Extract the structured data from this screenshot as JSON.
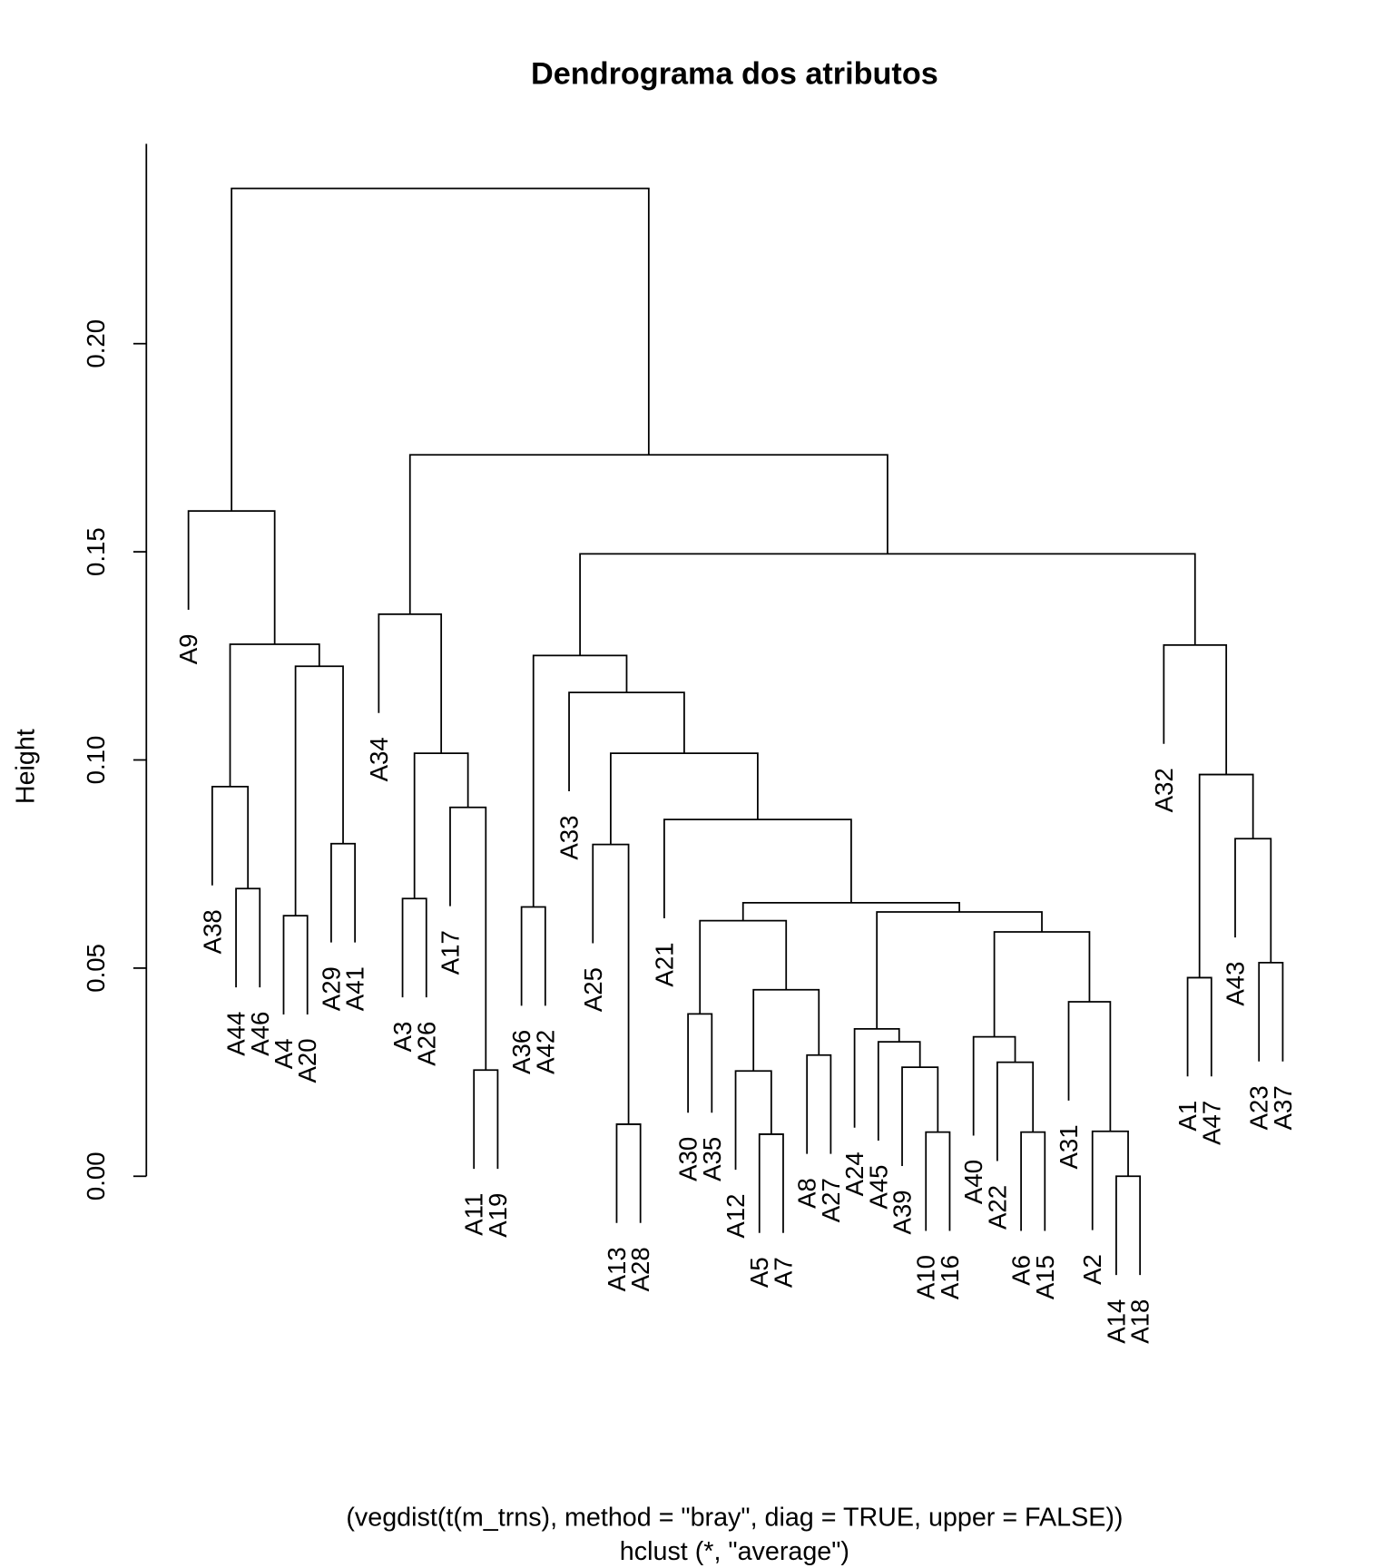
{
  "chart_data": {
    "type": "dendrogram",
    "title": "Dendrograma dos atributos",
    "ylabel": "Height",
    "xlabel": "(vegdist(t(m_trns), method = \"bray\", diag = TRUE, upper = FALSE))",
    "sub": "hclust (*, \"average\")",
    "ylim": [
      0,
      0.248
    ],
    "yticks": [
      0,
      0.05,
      0.1,
      0.15,
      0.2
    ],
    "ytick_labels": [
      "0.00",
      "0.05",
      "0.10",
      "0.15",
      "0.20"
    ],
    "hang": 0.1,
    "merges": [
      [
        "A14",
        "A18",
        0.0
      ],
      [
        "A11",
        "A19",
        0.0255
      ],
      [
        "A36",
        "A42",
        0.0647
      ],
      [
        "A13",
        "A28",
        0.0125
      ],
      [
        "A30",
        "A35",
        0.039
      ],
      [
        "A5",
        "A7",
        0.0101
      ],
      [
        "A12",
        "#5",
        0.0253
      ],
      [
        "A8",
        "A27",
        0.0291
      ],
      [
        "#6",
        "#7",
        0.0448
      ],
      [
        "#4",
        "#8",
        0.0614
      ],
      [
        "A10",
        "A16",
        0.0106
      ],
      [
        "A39",
        "#10",
        0.0262
      ],
      [
        "A45",
        "#11",
        0.0323
      ],
      [
        "A24",
        "#12",
        0.0354
      ],
      [
        "A6",
        "A15",
        0.0106
      ],
      [
        "A22",
        "#14",
        0.0274
      ],
      [
        "A40",
        "#15",
        0.0335
      ],
      [
        "A2",
        "#0",
        0.0108
      ],
      [
        "A31",
        "#17",
        0.0419
      ],
      [
        "#16",
        "#18",
        0.0587
      ],
      [
        "#13",
        "#19",
        0.0635
      ],
      [
        "#9",
        "#20",
        0.0657
      ],
      [
        "A21",
        "#21",
        0.0857
      ],
      [
        "A25",
        "#3",
        0.0797
      ],
      [
        "#23",
        "#22",
        0.1016
      ],
      [
        "A33",
        "#24",
        0.1162
      ],
      [
        "#2",
        "#25",
        0.1251
      ],
      [
        "A1",
        "A47",
        0.0477
      ],
      [
        "A23",
        "A37",
        0.0513
      ],
      [
        "A43",
        "#28",
        0.0811
      ],
      [
        "#27",
        "#29",
        0.0965
      ],
      [
        "A32",
        "#30",
        0.1276
      ],
      [
        "#26",
        "#31",
        0.1495
      ],
      [
        "A17",
        "#1",
        0.0886
      ],
      [
        "A3",
        "A26",
        0.0667
      ],
      [
        "#34",
        "#33",
        0.1016
      ],
      [
        "A34",
        "#35",
        0.135
      ],
      [
        "#36",
        "#32",
        0.1733
      ],
      [
        "A44",
        "A46",
        0.0691
      ],
      [
        "A38",
        "#38",
        0.0936
      ],
      [
        "A4",
        "A20",
        0.0626
      ],
      [
        "A29",
        "A41",
        0.0799
      ],
      [
        "#40",
        "#41",
        0.1225
      ],
      [
        "#39",
        "#42",
        0.1278
      ],
      [
        "A9",
        "#43",
        0.1598
      ],
      [
        "#44",
        "#37",
        0.2373
      ]
    ]
  }
}
